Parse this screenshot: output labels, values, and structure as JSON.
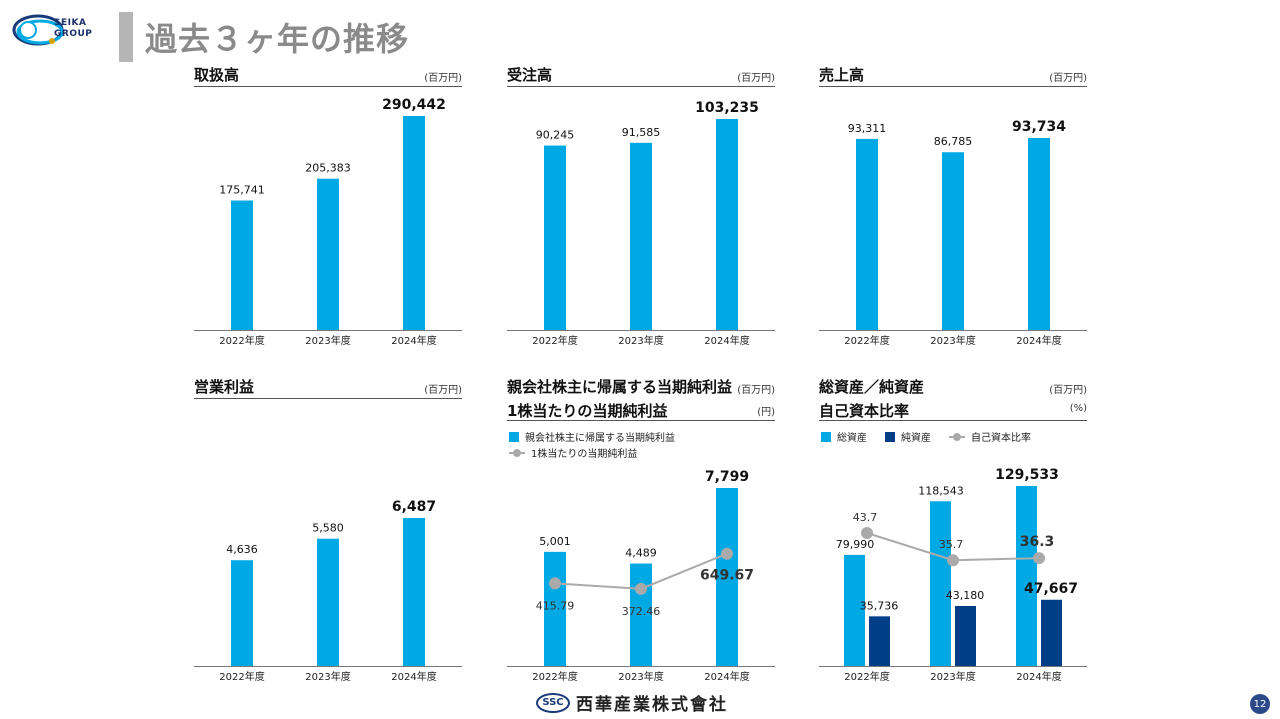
{
  "header": {
    "logo_line1": "SEIKA",
    "logo_line2": "GROUP",
    "title": "過去３ヶ年の推移"
  },
  "colors": {
    "bar_light": "#00a8e4",
    "bar_dark": "#003f87",
    "line": "#aaaaaa"
  },
  "panels": {
    "handling": {
      "title": "取扱高",
      "unit": "(百万円)"
    },
    "orders": {
      "title": "受注高",
      "unit": "(百万円)"
    },
    "sales": {
      "title": "売上高",
      "unit": "(百万円)"
    },
    "operating": {
      "title": "営業利益",
      "unit": "(百万円)"
    },
    "netincome": {
      "title1": "親会社株主に帰属する当期純利益",
      "title2": "1株当たりの当期純利益",
      "unit1": "(百万円)",
      "unit2": "(円)",
      "legend_bar": "親会社株主に帰属する当期純利益",
      "legend_line": "1株当たりの当期純利益"
    },
    "assets": {
      "title1": "総資産／純資産",
      "title2": "自己資本比率",
      "unit1": "(百万円)",
      "unit2": "(%)",
      "legend_total": "総資産",
      "legend_net": "純資産",
      "legend_ratio": "自己資本比率"
    }
  },
  "chart_data": [
    {
      "type": "bar",
      "title": "取扱高",
      "categories": [
        "2022年度",
        "2023年度",
        "2024年度"
      ],
      "values": [
        175741,
        205383,
        290442
      ],
      "labels": [
        "175,741",
        "205,383",
        "290,442"
      ]
    },
    {
      "type": "bar",
      "title": "受注高",
      "categories": [
        "2022年度",
        "2023年度",
        "2024年度"
      ],
      "values": [
        90245,
        91585,
        103235
      ],
      "labels": [
        "90,245",
        "91,585",
        "103,235"
      ]
    },
    {
      "type": "bar",
      "title": "売上高",
      "categories": [
        "2022年度",
        "2023年度",
        "2024年度"
      ],
      "values": [
        93311,
        86785,
        93734
      ],
      "labels": [
        "93,311",
        "86,785",
        "93,734"
      ]
    },
    {
      "type": "bar",
      "title": "営業利益",
      "categories": [
        "2022年度",
        "2023年度",
        "2024年度"
      ],
      "values": [
        4636,
        5580,
        6487
      ],
      "labels": [
        "4,636",
        "5,580",
        "6,487"
      ]
    },
    {
      "type": "bar",
      "title": "親会社株主に帰属する当期純利益 / 1株当たりの当期純利益",
      "categories": [
        "2022年度",
        "2023年度",
        "2024年度"
      ],
      "series": [
        {
          "name": "親会社株主に帰属する当期純利益",
          "values": [
            5001,
            4489,
            7799
          ],
          "labels": [
            "5,001",
            "4,489",
            "7,799"
          ]
        },
        {
          "name": "1株当たりの当期純利益",
          "type": "line",
          "values": [
            415.79,
            372.46,
            649.67
          ],
          "labels": [
            "415.79",
            "372.46",
            "649.67"
          ]
        }
      ]
    },
    {
      "type": "bar",
      "title": "総資産／純資産 / 自己資本比率",
      "categories": [
        "2022年度",
        "2023年度",
        "2024年度"
      ],
      "series": [
        {
          "name": "総資産",
          "values": [
            79990,
            118543,
            129533
          ],
          "labels": [
            "79,990",
            "118,543",
            "129,533"
          ]
        },
        {
          "name": "純資産",
          "values": [
            35736,
            43180,
            47667
          ],
          "labels": [
            "35,736",
            "43,180",
            "47,667"
          ]
        },
        {
          "name": "自己資本比率",
          "type": "line",
          "values": [
            43.7,
            35.7,
            36.3
          ],
          "labels": [
            "43.7",
            "35.7",
            "36.3"
          ]
        }
      ]
    }
  ],
  "footer": {
    "mark": "SSC",
    "company": "西華産業株式會社",
    "page": "12"
  }
}
